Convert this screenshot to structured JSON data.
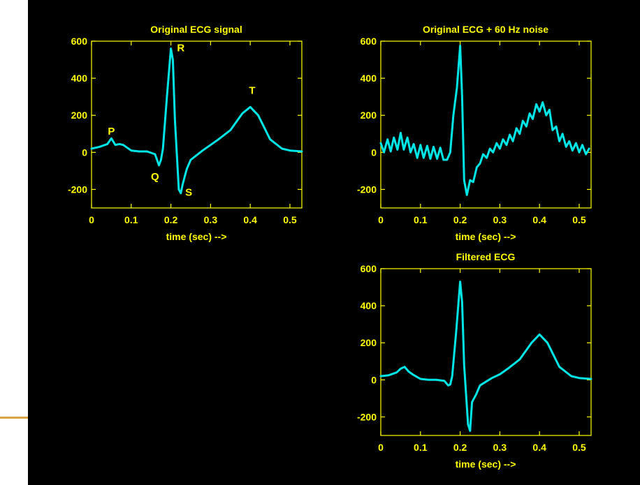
{
  "colors": {
    "background": "#000000",
    "axes": "#ffff00",
    "trace": "#00e5e5",
    "accent": "#d9a441"
  },
  "chart_data": [
    {
      "type": "line",
      "title": "Original ECG signal",
      "xlabel": "time (sec) -->",
      "ylabel": "",
      "xlim": [
        0,
        0.53
      ],
      "ylim": [
        -300,
        600
      ],
      "xticks": [
        "0",
        "0.1",
        "0.2",
        "0.3",
        "0.4",
        "0.5"
      ],
      "yticks": [
        "-200",
        "0",
        "200",
        "400",
        "600"
      ],
      "annotations": [
        {
          "text": "P",
          "x": 0.05,
          "y": 95
        },
        {
          "text": "Q",
          "x": 0.16,
          "y": -150
        },
        {
          "text": "R",
          "x": 0.225,
          "y": 545
        },
        {
          "text": "S",
          "x": 0.245,
          "y": -235
        },
        {
          "text": "T",
          "x": 0.405,
          "y": 315
        }
      ],
      "series": [
        {
          "x": [
            0,
            0.02,
            0.04,
            0.05,
            0.06,
            0.07,
            0.08,
            0.1,
            0.12,
            0.14,
            0.16,
            0.17,
            0.175,
            0.18,
            0.19,
            0.2,
            0.205,
            0.21,
            0.22,
            0.225,
            0.23,
            0.24,
            0.25,
            0.28,
            0.3,
            0.32,
            0.35,
            0.38,
            0.4,
            0.42,
            0.45,
            0.48,
            0.5,
            0.53
          ],
          "y": [
            20,
            30,
            45,
            75,
            40,
            45,
            40,
            10,
            5,
            5,
            -10,
            -70,
            -40,
            20,
            300,
            560,
            500,
            180,
            -200,
            -220,
            -170,
            -90,
            -40,
            10,
            40,
            70,
            120,
            210,
            245,
            200,
            70,
            20,
            10,
            5
          ]
        }
      ]
    },
    {
      "type": "line",
      "title": "Original ECG + 60 Hz noise",
      "xlabel": "time (sec) -->",
      "ylabel": "",
      "xlim": [
        0,
        0.53
      ],
      "ylim": [
        -300,
        600
      ],
      "xticks": [
        "0",
        "0.1",
        "0.2",
        "0.3",
        "0.4",
        "0.5"
      ],
      "yticks": [
        "-200",
        "0",
        "200",
        "400",
        "600"
      ],
      "series": [
        {
          "x": [
            0,
            0.008,
            0.017,
            0.025,
            0.033,
            0.042,
            0.05,
            0.058,
            0.067,
            0.075,
            0.083,
            0.092,
            0.1,
            0.108,
            0.117,
            0.125,
            0.133,
            0.142,
            0.15,
            0.158,
            0.167,
            0.175,
            0.183,
            0.192,
            0.2,
            0.205,
            0.21,
            0.217,
            0.225,
            0.233,
            0.242,
            0.25,
            0.258,
            0.267,
            0.275,
            0.283,
            0.292,
            0.3,
            0.308,
            0.317,
            0.325,
            0.333,
            0.342,
            0.35,
            0.358,
            0.367,
            0.375,
            0.383,
            0.392,
            0.4,
            0.408,
            0.417,
            0.425,
            0.433,
            0.442,
            0.45,
            0.458,
            0.467,
            0.475,
            0.483,
            0.492,
            0.5,
            0.508,
            0.517,
            0.525
          ],
          "y": [
            50,
            0,
            70,
            5,
            80,
            15,
            105,
            15,
            80,
            0,
            45,
            -30,
            40,
            -30,
            35,
            -35,
            30,
            -35,
            25,
            -40,
            -40,
            0,
            200,
            350,
            575,
            300,
            -150,
            -230,
            -150,
            -160,
            -80,
            -60,
            -10,
            -30,
            20,
            0,
            50,
            20,
            70,
            40,
            95,
            60,
            130,
            100,
            170,
            140,
            210,
            180,
            260,
            220,
            270,
            200,
            230,
            120,
            140,
            60,
            100,
            30,
            60,
            10,
            50,
            0,
            40,
            -10,
            20
          ]
        }
      ]
    },
    {
      "type": "line",
      "title": "Filtered ECG",
      "xlabel": "time (sec) -->",
      "ylabel": "",
      "xlim": [
        0,
        0.53
      ],
      "ylim": [
        -300,
        600
      ],
      "xticks": [
        "0",
        "0.1",
        "0.2",
        "0.3",
        "0.4",
        "0.5"
      ],
      "yticks": [
        "-200",
        "0",
        "200",
        "400",
        "600"
      ],
      "series": [
        {
          "x": [
            0,
            0.02,
            0.04,
            0.05,
            0.06,
            0.07,
            0.08,
            0.1,
            0.12,
            0.14,
            0.16,
            0.17,
            0.175,
            0.18,
            0.19,
            0.2,
            0.205,
            0.21,
            0.22,
            0.225,
            0.23,
            0.24,
            0.25,
            0.28,
            0.3,
            0.32,
            0.35,
            0.38,
            0.4,
            0.42,
            0.45,
            0.48,
            0.5,
            0.53
          ],
          "y": [
            20,
            25,
            40,
            60,
            70,
            45,
            30,
            5,
            0,
            0,
            -5,
            -30,
            -25,
            20,
            260,
            530,
            420,
            80,
            -240,
            -275,
            -120,
            -80,
            -30,
            10,
            30,
            60,
            110,
            200,
            245,
            200,
            70,
            20,
            10,
            5
          ]
        }
      ]
    }
  ]
}
